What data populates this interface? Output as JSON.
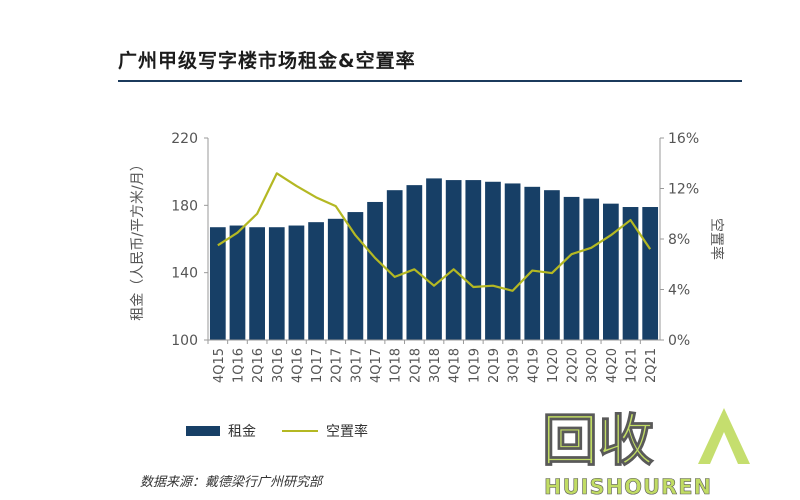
{
  "title": "广州甲级写字楼市场租金&空置率",
  "source": "数据来源：戴德梁行广州研究部",
  "colors": {
    "bar": "#173f66",
    "line": "#b4b823",
    "axis": "#9a9a9a",
    "text": "#555555",
    "watermark_green": "#b7d64a",
    "watermark_dark": "#3d3d3d"
  },
  "watermark": {
    "main": "回收",
    "sub": "HUISHOUREN"
  },
  "chart_data": {
    "type": "bar",
    "categories": [
      "4Q15",
      "1Q16",
      "2Q16",
      "3Q16",
      "4Q16",
      "1Q17",
      "2Q17",
      "3Q17",
      "4Q17",
      "1Q18",
      "2Q18",
      "3Q18",
      "4Q18",
      "1Q19",
      "2Q19",
      "3Q19",
      "4Q19",
      "1Q20",
      "2Q20",
      "3Q20",
      "4Q20",
      "1Q21",
      "2Q21"
    ],
    "series": [
      {
        "name": "租金",
        "type": "bar",
        "axis": "left",
        "values": [
          167,
          168,
          167,
          167,
          168,
          170,
          172,
          176,
          182,
          189,
          192,
          196,
          195,
          195,
          194,
          193,
          191,
          189,
          185,
          184,
          181,
          179,
          179
        ]
      },
      {
        "name": "空置率",
        "type": "line",
        "axis": "right",
        "values": [
          7.5,
          8.5,
          10.0,
          13.2,
          12.2,
          11.3,
          10.6,
          8.3,
          6.5,
          5.0,
          5.6,
          4.3,
          5.6,
          4.2,
          4.3,
          3.9,
          5.5,
          5.3,
          6.8,
          7.3,
          8.3,
          9.5,
          7.2
        ]
      }
    ],
    "ylabel": "租金（人民币/平方米/月）",
    "ylabel_right": "空置率",
    "ylim": [
      100,
      220
    ],
    "yticks": [
      "100",
      "140",
      "180",
      "220"
    ],
    "y_right_lim": [
      0,
      16
    ],
    "y_right_ticks": [
      "0%",
      "4%",
      "8%",
      "12%",
      "16%"
    ],
    "legend_position": "bottom"
  }
}
